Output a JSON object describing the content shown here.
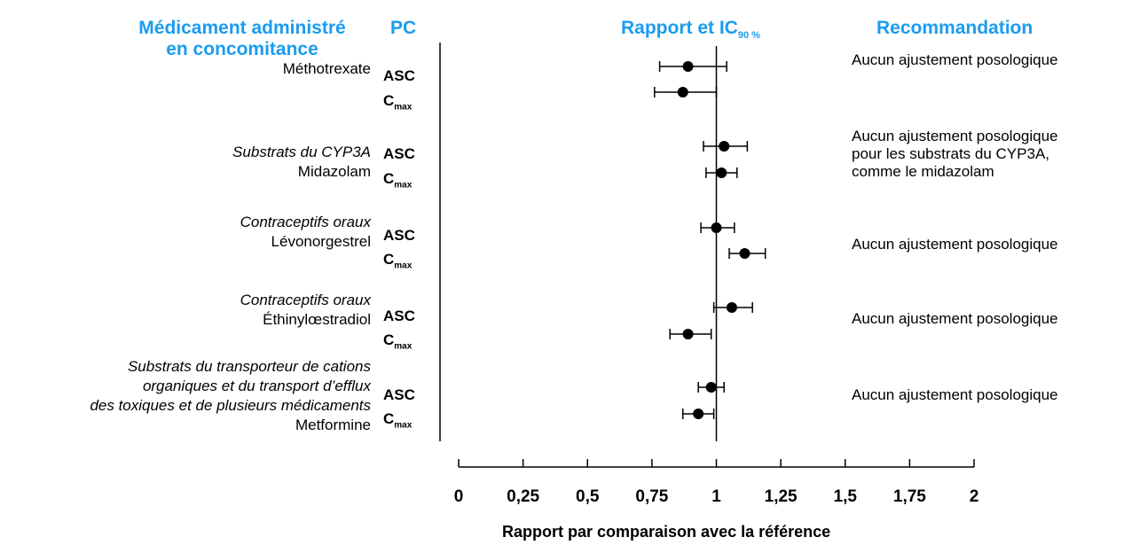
{
  "headers": {
    "drug_line1": "Médicament administré",
    "drug_line2": "en concomitance",
    "pk": "PC",
    "ratio": "Rapport et IC",
    "ratio_sub": "90 %",
    "recommendation": "Recommandation"
  },
  "groups": [
    {
      "category": "",
      "drug": "Méthotrexate",
      "recommendation": "Aucun ajustement posologique"
    },
    {
      "category": "Substrats du CYP3A",
      "drug": "Midazolam",
      "recommendation": "Aucun ajustement posologique\npour les substrats du CYP3A,\ncomme le midazolam"
    },
    {
      "category": "Contraceptifs oraux",
      "drug": "Lévonorgestrel",
      "recommendation": "Aucun ajustement posologique"
    },
    {
      "category": "Contraceptifs oraux",
      "drug": "Éthinylœstradiol",
      "recommendation": "Aucun ajustement posologique"
    },
    {
      "category": "Substrats du transporteur de cations\norganiques et du transport d’efflux\ndes toxiques et de plusieurs médicaments",
      "drug": "Metformine",
      "recommendation": "Aucun ajustement posologique"
    }
  ],
  "pk_labels": {
    "auc": "ASC",
    "cmax_main": "C",
    "cmax_sub": "max"
  },
  "chart_data": {
    "type": "scatter",
    "subtype": "forest-plot",
    "xlabel": "Rapport par comparaison avec la référence",
    "xlim": [
      0,
      2
    ],
    "xticks": [
      0,
      0.25,
      0.5,
      0.75,
      1,
      1.25,
      1.5,
      1.75,
      2
    ],
    "xtick_labels": [
      "0",
      "0,25",
      "0,5",
      "0,75",
      "1",
      "1,25",
      "1,5",
      "1,75",
      "2"
    ],
    "reference_line": 1,
    "series": [
      {
        "drug": "Méthotrexate",
        "pk": "ASC",
        "point": 0.89,
        "ci": [
          0.78,
          1.04
        ]
      },
      {
        "drug": "Méthotrexate",
        "pk": "Cmax",
        "point": 0.87,
        "ci": [
          0.76,
          1.0
        ]
      },
      {
        "drug": "Midazolam",
        "pk": "ASC",
        "point": 1.03,
        "ci": [
          0.95,
          1.12
        ]
      },
      {
        "drug": "Midazolam",
        "pk": "Cmax",
        "point": 1.02,
        "ci": [
          0.96,
          1.08
        ]
      },
      {
        "drug": "Lévonorgestrel",
        "pk": "ASC",
        "point": 1.0,
        "ci": [
          0.94,
          1.07
        ]
      },
      {
        "drug": "Lévonorgestrel",
        "pk": "Cmax",
        "point": 1.11,
        "ci": [
          1.05,
          1.19
        ]
      },
      {
        "drug": "Éthinylœstradiol",
        "pk": "ASC",
        "point": 1.06,
        "ci": [
          0.99,
          1.14
        ]
      },
      {
        "drug": "Éthinylœstradiol",
        "pk": "Cmax",
        "point": 0.89,
        "ci": [
          0.82,
          0.98
        ]
      },
      {
        "drug": "Metformine",
        "pk": "ASC",
        "point": 0.98,
        "ci": [
          0.93,
          1.03
        ]
      },
      {
        "drug": "Metformine",
        "pk": "Cmax",
        "point": 0.93,
        "ci": [
          0.87,
          0.99
        ]
      }
    ]
  }
}
